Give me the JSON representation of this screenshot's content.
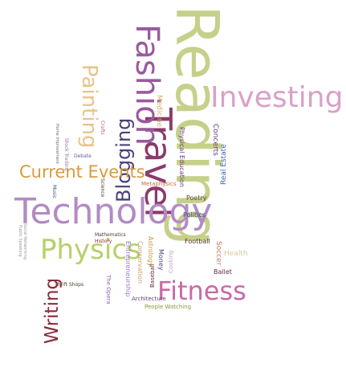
{
  "words": [
    {
      "id": "reading",
      "text": "Reading",
      "color": "#c7d08a"
    },
    {
      "id": "investing",
      "text": "Investing",
      "color": "#d9a1c9"
    },
    {
      "id": "travel",
      "text": "Travel",
      "color": "#8a3b6b"
    },
    {
      "id": "fashion",
      "text": "Fashion",
      "color": "#9a5a9e"
    },
    {
      "id": "painting",
      "text": "Painting",
      "color": "#e7c48a"
    },
    {
      "id": "blogging",
      "text": "Blogging",
      "color": "#4a3f7a"
    },
    {
      "id": "technology",
      "text": "Technology",
      "color": "#b18bc4"
    },
    {
      "id": "current-events",
      "text": "Current Events",
      "color": "#d99a3b"
    },
    {
      "id": "physics",
      "text": "Physics",
      "color": "#b6d06a"
    },
    {
      "id": "writing",
      "text": "Writing",
      "color": "#8a2a3a"
    },
    {
      "id": "fitness",
      "text": "Fitness",
      "color": "#c86aa6"
    },
    {
      "id": "medicine",
      "text": "Medicine",
      "color": "#d8b06a"
    },
    {
      "id": "physical-education",
      "text": "Physical Education",
      "color": "#6b3d7a"
    },
    {
      "id": "concerts",
      "text": "Concerts",
      "color": "#6b3d7a"
    },
    {
      "id": "real-estate",
      "text": "Real Estate",
      "color": "#3f6aa6"
    },
    {
      "id": "metaphysics",
      "text": "Metaphysics",
      "color": "#c86a3a"
    },
    {
      "id": "poetry",
      "text": "Poetry",
      "color": "#5a4a2a"
    },
    {
      "id": "politics",
      "text": "Politics",
      "color": "#3b4a8a"
    },
    {
      "id": "astrology",
      "text": "Astrology",
      "color": "#c89a3a"
    },
    {
      "id": "money",
      "text": "Money",
      "color": "#4a3f7a"
    },
    {
      "id": "football",
      "text": "Football",
      "color": "#4a3a2a"
    },
    {
      "id": "soccer",
      "text": "Soccer",
      "color": "#c8786a"
    },
    {
      "id": "health",
      "text": "Health",
      "color": "#d8c89a"
    },
    {
      "id": "ballet",
      "text": "Ballet",
      "color": "#6b2a3a"
    },
    {
      "id": "baseball",
      "text": "Baseball",
      "color": "#6b2a3a"
    },
    {
      "id": "cooking",
      "text": "Cooking",
      "color": "#c8a0c8"
    },
    {
      "id": "conservation",
      "text": "Conservation",
      "color": "#c8a070"
    },
    {
      "id": "entrepreneurship",
      "text": "Entrepreneurship",
      "color": "#9a7ac8"
    },
    {
      "id": "architecture",
      "text": "Architecture",
      "color": "#6b3d7a"
    },
    {
      "id": "people-watching",
      "text": "People Watching",
      "color": "#8a9a3a"
    },
    {
      "id": "the-opera",
      "text": "The Opera",
      "color": "#8a6ab0"
    },
    {
      "id": "mathematics",
      "text": "Mathematics",
      "color": "#4a3a2a"
    },
    {
      "id": "history",
      "text": "History",
      "color": "#8a2a3a"
    },
    {
      "id": "thrift-shops",
      "text": "Thrift Shops",
      "color": "#4a3a2a"
    },
    {
      "id": "stock-trading",
      "text": "Stock Trading",
      "color": "#8a7aa0"
    },
    {
      "id": "crafts",
      "text": "Crafts",
      "color": "#b06a8a"
    },
    {
      "id": "debate",
      "text": "Debate",
      "color": "#6a5aa6"
    },
    {
      "id": "music",
      "text": "Music",
      "color": "#3b4a6a"
    },
    {
      "id": "science",
      "text": "Science",
      "color": "#4a3a2a"
    },
    {
      "id": "home-improvement",
      "text": "Home Improvement",
      "color": "#6a6a6a"
    },
    {
      "id": "social-networking",
      "text": "Social Networking",
      "color": "#9a9a9a"
    },
    {
      "id": "public-speaking",
      "text": "Public Speaking",
      "color": "#9a9a9a"
    }
  ]
}
